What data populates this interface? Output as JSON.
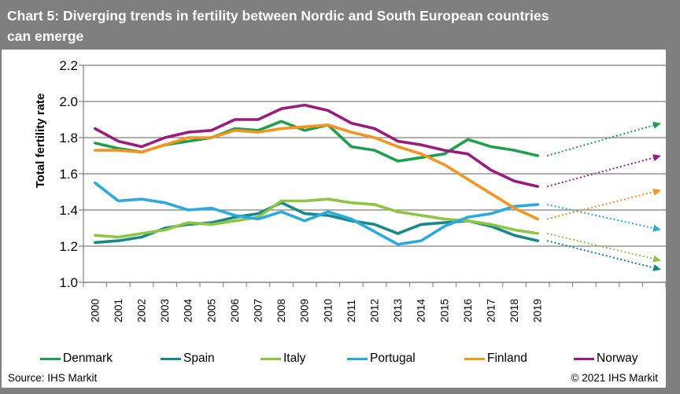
{
  "title": {
    "text": "Chart 5: Diverging trends in fertility between Nordic and South European countries can emerge",
    "lines": [
      "Chart 5: Diverging trends in fertility  between Nordic  and South European countries",
      "can emerge"
    ]
  },
  "chart_data": {
    "type": "line",
    "title": "Chart 5: Diverging trends in fertility between Nordic and South European countries can emerge",
    "ylabel": "Total fertility rate",
    "ylim": [
      1.0,
      2.2
    ],
    "ytick_step": 0.2,
    "grid": "horizontal",
    "legend_position": "bottom",
    "x_years": [
      "2000",
      "2001",
      "2002",
      "2003",
      "2004",
      "2005",
      "2006",
      "2007",
      "2008",
      "2009",
      "2010",
      "2011",
      "2012",
      "2013",
      "2014",
      "2015",
      "2016",
      "2017",
      "2018",
      "2019"
    ],
    "projection_note": "dotted arrows extend each series from 2019 to about 2024 (unlabeled ticks continue after 2019)",
    "series": [
      {
        "name": "Denmark",
        "color": "#1fa04e",
        "values": [
          1.77,
          1.74,
          1.72,
          1.76,
          1.78,
          1.8,
          1.85,
          1.84,
          1.89,
          1.84,
          1.87,
          1.75,
          1.73,
          1.67,
          1.69,
          1.71,
          1.79,
          1.75,
          1.73,
          1.7
        ],
        "projection_end": 1.88
      },
      {
        "name": "Spain",
        "color": "#17898d",
        "values": [
          1.22,
          1.23,
          1.25,
          1.3,
          1.32,
          1.33,
          1.36,
          1.38,
          1.44,
          1.38,
          1.37,
          1.34,
          1.32,
          1.27,
          1.32,
          1.33,
          1.34,
          1.31,
          1.26,
          1.23
        ],
        "projection_end": 1.07
      },
      {
        "name": "Italy",
        "color": "#8ec641",
        "values": [
          1.26,
          1.25,
          1.27,
          1.29,
          1.33,
          1.32,
          1.34,
          1.36,
          1.45,
          1.45,
          1.46,
          1.44,
          1.43,
          1.39,
          1.37,
          1.35,
          1.34,
          1.32,
          1.29,
          1.27
        ],
        "projection_end": 1.12
      },
      {
        "name": "Portugal",
        "color": "#29abe2",
        "values": [
          1.55,
          1.45,
          1.46,
          1.44,
          1.4,
          1.41,
          1.37,
          1.35,
          1.39,
          1.34,
          1.39,
          1.35,
          1.28,
          1.21,
          1.23,
          1.31,
          1.36,
          1.38,
          1.42,
          1.43
        ],
        "projection_end": 1.29
      },
      {
        "name": "Finland",
        "color": "#f7941e",
        "values": [
          1.73,
          1.73,
          1.72,
          1.76,
          1.8,
          1.8,
          1.84,
          1.83,
          1.85,
          1.86,
          1.87,
          1.83,
          1.8,
          1.75,
          1.71,
          1.65,
          1.57,
          1.49,
          1.41,
          1.35
        ],
        "projection_end": 1.51
      },
      {
        "name": "Norway",
        "color": "#9b1c7d",
        "values": [
          1.85,
          1.78,
          1.75,
          1.8,
          1.83,
          1.84,
          1.9,
          1.9,
          1.96,
          1.98,
          1.95,
          1.88,
          1.85,
          1.78,
          1.76,
          1.73,
          1.71,
          1.62,
          1.56,
          1.53
        ],
        "projection_end": 1.7
      }
    ],
    "colors": {
      "grid": "#7f7f7f",
      "axis": "#7f7f7f",
      "text": "#000000",
      "titlebar": "#7f7f7f"
    }
  },
  "footer": {
    "source": "Source: IHS Markit",
    "copyright": "© 2021 IHS Markit"
  }
}
